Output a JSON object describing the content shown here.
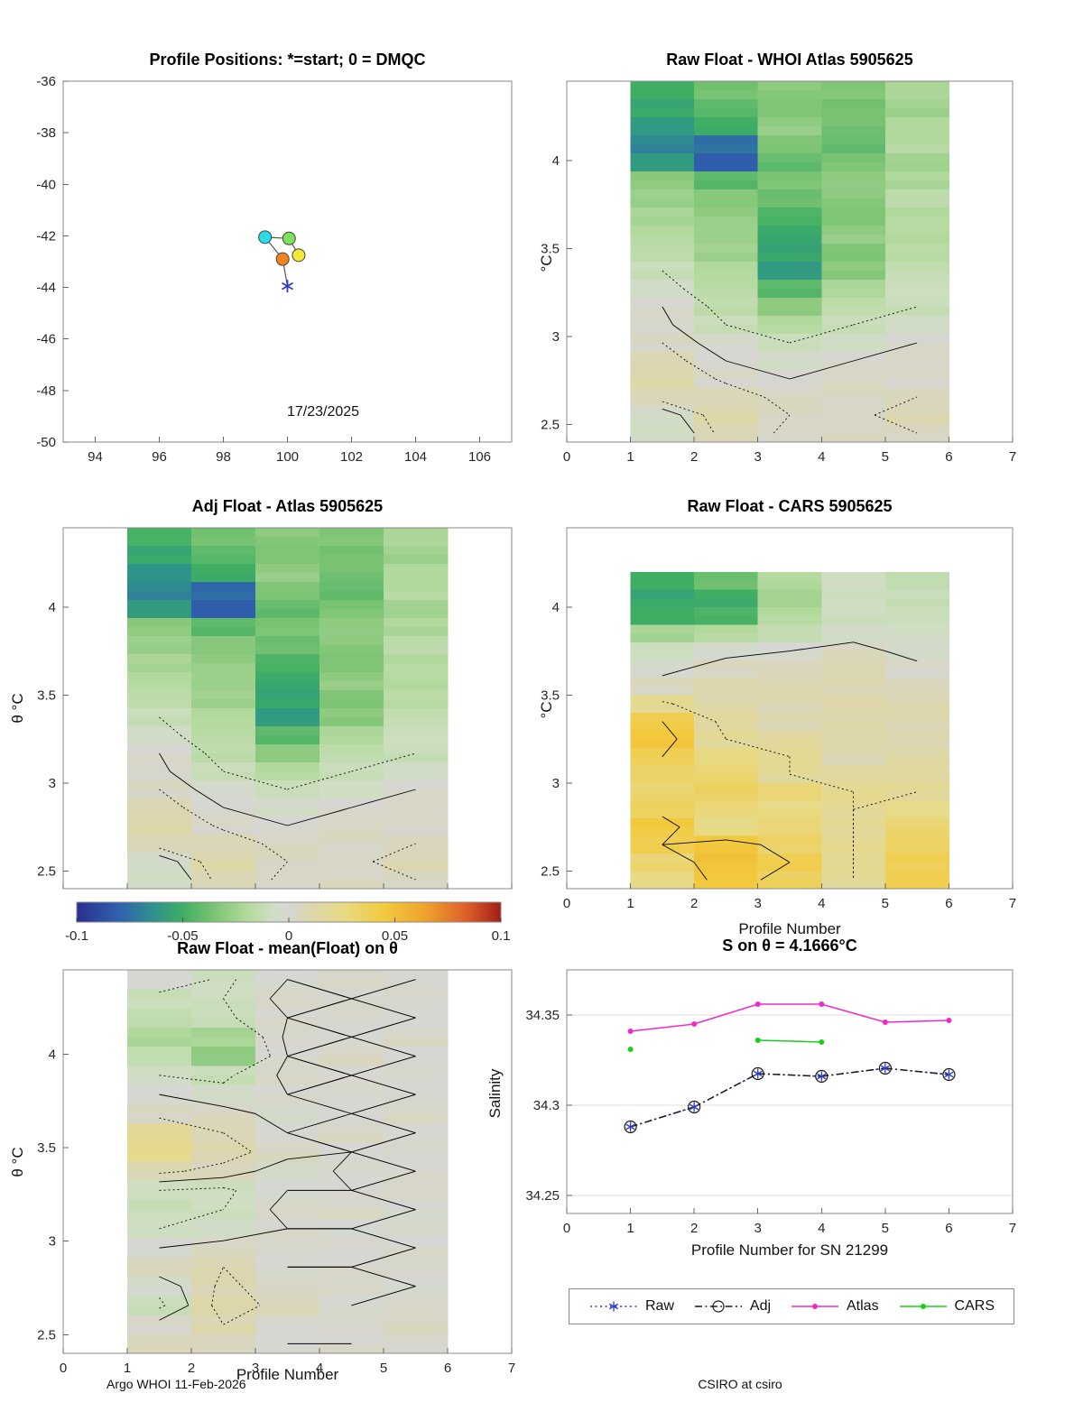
{
  "figure": {
    "background": "#ffffff",
    "footer_left": "Argo WHOI 11-Feb-2026",
    "footer_right": "CSIRO at csiro",
    "colormap": {
      "stops": [
        [
          -0.1,
          "#2a2e8f"
        ],
        [
          -0.08,
          "#2f62ae"
        ],
        [
          -0.062,
          "#2f958a"
        ],
        [
          -0.05,
          "#3fae62"
        ],
        [
          -0.035,
          "#7cc474"
        ],
        [
          -0.02,
          "#b2d99c"
        ],
        [
          -0.008,
          "#cfdec2"
        ],
        [
          0.0,
          "#d6d6d2"
        ],
        [
          0.01,
          "#dcd6ae"
        ],
        [
          0.025,
          "#e7da88"
        ],
        [
          0.045,
          "#f2ca3e"
        ],
        [
          0.065,
          "#efa02c"
        ],
        [
          0.085,
          "#da5b28"
        ],
        [
          0.1,
          "#a01d19"
        ]
      ]
    },
    "colorbar": {
      "range": [
        -0.1,
        0.1
      ],
      "ticks": [
        -0.1,
        -0.05,
        0,
        0.05,
        0.1
      ],
      "tick_labels": [
        "-0.1",
        "-0.05",
        "0",
        "0.05",
        "0.1"
      ]
    }
  },
  "chart_data": [
    {
      "id": "positions",
      "type": "scatter",
      "title": "Profile Positions: *=start; 0 = DMQC",
      "xlim": [
        93,
        107
      ],
      "ylim": [
        -50,
        -36
      ],
      "xticks": [
        94,
        96,
        98,
        100,
        102,
        104,
        106
      ],
      "xtick_labels": [
        "94",
        "96",
        "98",
        "100",
        "102",
        "104",
        "106"
      ],
      "yticks": [
        -50,
        -48,
        -46,
        -44,
        -42,
        -40,
        -38,
        -36
      ],
      "ytick_labels": [
        "-50",
        "-48",
        "-46",
        "-44",
        "-42",
        "-40",
        "-38",
        "-36"
      ],
      "annotation": {
        "text": "17/23/2025",
        "x": 100,
        "y": -49
      },
      "track": [
        {
          "x": 100.0,
          "y": -43.95,
          "marker": "asterisk",
          "color": "#2f3ec4"
        },
        {
          "x": 99.85,
          "y": -42.9,
          "marker": "circle",
          "color": "#f5821f"
        },
        {
          "x": 99.3,
          "y": -42.05,
          "marker": "circle",
          "color": "#29dce8"
        },
        {
          "x": 100.05,
          "y": -42.1,
          "marker": "circle",
          "color": "#7de25a"
        },
        {
          "x": 100.35,
          "y": -42.75,
          "marker": "circle",
          "color": "#f2e83a"
        }
      ]
    },
    {
      "id": "raw_atlas",
      "type": "heatmap",
      "title": "Raw Float - WHOI Atlas  5905625",
      "xlim": [
        0,
        7
      ],
      "ylim": [
        2.4,
        4.45
      ],
      "xticks": [
        0,
        1,
        2,
        3,
        4,
        5,
        6,
        7
      ],
      "xtick_labels": [
        "0",
        "1",
        "2",
        "3",
        "4",
        "5",
        "6",
        "7"
      ],
      "yticks": [
        2.5,
        3,
        3.5,
        4
      ],
      "ytick_labels": [
        "2.5",
        "3",
        "3.5",
        "4"
      ],
      "ylabel": "°C",
      "contours": {
        "solid": [
          0
        ],
        "dotted": [
          -0.01,
          0.005
        ]
      },
      "grid": {
        "x0": 1,
        "x1": 6,
        "y_top": 4.45,
        "y_bottom": 2.4,
        "values": [
          [
            -0.05,
            -0.038,
            -0.03,
            -0.034,
            -0.022
          ],
          [
            -0.055,
            -0.042,
            -0.034,
            -0.038,
            -0.024
          ],
          [
            -0.06,
            -0.05,
            -0.03,
            -0.036,
            -0.02
          ],
          [
            -0.066,
            -0.076,
            -0.034,
            -0.04,
            -0.02
          ],
          [
            -0.06,
            -0.082,
            -0.04,
            -0.036,
            -0.024
          ],
          [
            -0.032,
            -0.042,
            -0.036,
            -0.03,
            -0.02
          ],
          [
            -0.026,
            -0.032,
            -0.04,
            -0.03,
            -0.016
          ],
          [
            -0.022,
            -0.03,
            -0.046,
            -0.034,
            -0.02
          ],
          [
            -0.02,
            -0.026,
            -0.052,
            -0.03,
            -0.018
          ],
          [
            -0.016,
            -0.024,
            -0.056,
            -0.034,
            -0.016
          ],
          [
            -0.01,
            -0.02,
            -0.06,
            -0.03,
            -0.014
          ],
          [
            -0.006,
            -0.018,
            -0.042,
            -0.022,
            -0.01
          ],
          [
            0.0,
            -0.014,
            -0.03,
            -0.016,
            -0.01
          ],
          [
            0.002,
            -0.01,
            -0.02,
            -0.01,
            -0.006
          ],
          [
            0.005,
            -0.004,
            -0.01,
            -0.006,
            0.0
          ],
          [
            0.008,
            0.0,
            -0.004,
            0.0,
            0.003
          ],
          [
            0.01,
            0.004,
            0.0,
            0.003,
            0.004
          ],
          [
            0.008,
            0.008,
            0.003,
            0.005,
            0.005
          ],
          [
            -0.004,
            0.01,
            0.005,
            0.004,
            0.007
          ],
          [
            -0.008,
            0.008,
            0.004,
            0.003,
            0.005
          ]
        ]
      }
    },
    {
      "id": "adj_atlas",
      "type": "heatmap",
      "title": "Adj Float - Atlas  5905625",
      "xlim": [
        0,
        7
      ],
      "ylim": [
        2.4,
        4.45
      ],
      "xticks": [
        0,
        1,
        2,
        3,
        4,
        5,
        6,
        7
      ],
      "xtick_labels": null,
      "yticks": [
        2.5,
        3,
        3.5,
        4
      ],
      "ytick_labels": [
        "2.5",
        "3",
        "3.5",
        "4"
      ],
      "ylabel": "θ °C",
      "contours": {
        "solid": [
          0
        ],
        "dotted": [
          -0.01,
          0.005
        ]
      },
      "grid": {
        "x0": 1,
        "x1": 6,
        "y_top": 4.45,
        "y_bottom": 2.4,
        "values": [
          [
            -0.048,
            -0.038,
            -0.03,
            -0.034,
            -0.022
          ],
          [
            -0.055,
            -0.042,
            -0.034,
            -0.038,
            -0.024
          ],
          [
            -0.062,
            -0.05,
            -0.03,
            -0.036,
            -0.02
          ],
          [
            -0.066,
            -0.078,
            -0.034,
            -0.04,
            -0.02
          ],
          [
            -0.06,
            -0.082,
            -0.04,
            -0.036,
            -0.024
          ],
          [
            -0.032,
            -0.042,
            -0.036,
            -0.03,
            -0.02
          ],
          [
            -0.026,
            -0.032,
            -0.04,
            -0.03,
            -0.016
          ],
          [
            -0.022,
            -0.03,
            -0.046,
            -0.034,
            -0.02
          ],
          [
            -0.02,
            -0.026,
            -0.052,
            -0.03,
            -0.018
          ],
          [
            -0.016,
            -0.024,
            -0.056,
            -0.034,
            -0.016
          ],
          [
            -0.01,
            -0.02,
            -0.06,
            -0.03,
            -0.014
          ],
          [
            -0.006,
            -0.018,
            -0.042,
            -0.022,
            -0.01
          ],
          [
            0.0,
            -0.014,
            -0.03,
            -0.016,
            -0.01
          ],
          [
            0.002,
            -0.01,
            -0.02,
            -0.01,
            -0.006
          ],
          [
            0.005,
            -0.004,
            -0.01,
            -0.006,
            0.0
          ],
          [
            0.008,
            0.0,
            -0.004,
            0.0,
            0.003
          ],
          [
            0.01,
            0.004,
            0.0,
            0.003,
            0.004
          ],
          [
            0.008,
            0.008,
            0.003,
            0.005,
            0.005
          ],
          [
            -0.004,
            0.01,
            0.005,
            0.004,
            0.007
          ],
          [
            -0.008,
            0.008,
            0.004,
            0.003,
            0.005
          ]
        ]
      }
    },
    {
      "id": "raw_cars",
      "type": "heatmap",
      "title": "Raw Float - CARS  5905625",
      "xlim": [
        0,
        7
      ],
      "ylim": [
        2.4,
        4.45
      ],
      "xticks": [
        0,
        1,
        2,
        3,
        4,
        5,
        6,
        7
      ],
      "xtick_labels": [
        "0",
        "1",
        "2",
        "3",
        "4",
        "5",
        "6",
        "7"
      ],
      "yticks": [
        2.5,
        3,
        3.5,
        4
      ],
      "ytick_labels": [
        "2.5",
        "3",
        "3.5",
        "4"
      ],
      "xlabel": "Profile Number",
      "ylabel": "°C",
      "contours": {
        "solid": [
          0,
          0.04
        ],
        "dotted": [
          0.02
        ]
      },
      "grid": {
        "x0": 1,
        "x1": 6,
        "y_top": 4.2,
        "y_bottom": 2.4,
        "values": [
          [
            -0.05,
            -0.04,
            -0.018,
            -0.008,
            -0.014
          ],
          [
            -0.056,
            -0.05,
            -0.024,
            -0.01,
            -0.01
          ],
          [
            -0.05,
            -0.046,
            -0.02,
            -0.008,
            -0.01
          ],
          [
            -0.022,
            -0.02,
            -0.012,
            -0.004,
            -0.008
          ],
          [
            -0.01,
            -0.004,
            0.0,
            0.004,
            -0.004
          ],
          [
            -0.004,
            0.006,
            0.005,
            0.008,
            0.003
          ],
          [
            0.006,
            0.01,
            0.008,
            0.01,
            0.005
          ],
          [
            0.022,
            0.01,
            0.01,
            0.012,
            0.008
          ],
          [
            0.04,
            0.016,
            0.01,
            0.01,
            0.01
          ],
          [
            0.046,
            0.02,
            0.015,
            0.012,
            0.01
          ],
          [
            0.04,
            0.026,
            0.02,
            0.01,
            0.012
          ],
          [
            0.034,
            0.03,
            0.02,
            0.015,
            0.015
          ],
          [
            0.03,
            0.036,
            0.03,
            0.02,
            0.02
          ],
          [
            0.036,
            0.03,
            0.025,
            0.02,
            0.025
          ],
          [
            0.046,
            0.024,
            0.03,
            0.02,
            0.03
          ],
          [
            0.04,
            0.046,
            0.035,
            0.02,
            0.035
          ],
          [
            0.03,
            0.05,
            0.04,
            0.02,
            0.04
          ],
          [
            0.026,
            0.046,
            0.035,
            0.02,
            0.04
          ]
        ]
      }
    },
    {
      "id": "raw_mean",
      "type": "heatmap",
      "title": "Raw Float - mean(Float) on θ",
      "xlim": [
        0,
        7
      ],
      "ylim": [
        2.4,
        4.45
      ],
      "xticks": [
        0,
        1,
        2,
        3,
        4,
        5,
        6,
        7
      ],
      "xtick_labels": [
        "0",
        "1",
        "2",
        "3",
        "4",
        "5",
        "6",
        "7"
      ],
      "yticks": [
        2.5,
        3,
        3.5,
        4
      ],
      "ytick_labels": [
        "2.5",
        "3",
        "3.5",
        "4"
      ],
      "xlabel": "Profile Number",
      "ylabel": "θ °C",
      "contours": {
        "solid": [
          0
        ],
        "dotted": [
          -0.008,
          0.008
        ]
      },
      "grid": {
        "x0": 1,
        "x1": 6,
        "y_top": 4.45,
        "y_bottom": 2.4,
        "values": [
          [
            0.0,
            -0.01,
            0.0,
            0.002,
            0.0
          ],
          [
            -0.012,
            -0.008,
            0.003,
            0.0,
            0.002
          ],
          [
            -0.014,
            -0.01,
            0.0,
            0.002,
            0.0
          ],
          [
            -0.02,
            -0.024,
            0.002,
            0.0,
            0.002
          ],
          [
            -0.014,
            -0.03,
            0.0,
            0.003,
            0.0
          ],
          [
            -0.008,
            -0.01,
            0.002,
            0.0,
            0.002
          ],
          [
            0.0,
            -0.005,
            0.0,
            0.002,
            0.0
          ],
          [
            0.005,
            0.003,
            -0.003,
            0.0,
            0.002
          ],
          [
            0.018,
            0.008,
            0.0,
            0.002,
            0.0
          ],
          [
            0.022,
            0.012,
            0.003,
            0.0,
            0.002
          ],
          [
            0.01,
            0.005,
            -0.005,
            0.002,
            0.0
          ],
          [
            -0.008,
            -0.01,
            0.0,
            0.0,
            0.002
          ],
          [
            -0.012,
            -0.008,
            0.003,
            0.002,
            0.0
          ],
          [
            -0.008,
            -0.005,
            0.0,
            0.0,
            0.002
          ],
          [
            0.0,
            0.003,
            0.002,
            0.002,
            0.0
          ],
          [
            0.005,
            0.008,
            0.0,
            0.0,
            0.002
          ],
          [
            -0.005,
            0.01,
            0.003,
            0.002,
            0.0
          ],
          [
            -0.01,
            0.012,
            0.005,
            0.0,
            0.002
          ],
          [
            0.003,
            0.008,
            0.002,
            0.002,
            0.003
          ],
          [
            0.005,
            0.005,
            0.0,
            0.0,
            0.002
          ]
        ]
      }
    },
    {
      "id": "s_on_theta",
      "type": "line",
      "title": "S on θ = 4.1666°C",
      "xlabel": "Profile Number for SN 21299",
      "ylabel": "Salinity",
      "xlim": [
        0,
        7
      ],
      "ylim": [
        34.24,
        34.375
      ],
      "xticks": [
        0,
        1,
        2,
        3,
        4,
        5,
        6,
        7
      ],
      "xtick_labels": [
        "0",
        "1",
        "2",
        "3",
        "4",
        "5",
        "6",
        "7"
      ],
      "yticks": [
        34.25,
        34.3,
        34.35
      ],
      "ytick_labels": [
        "34.25",
        "34.3",
        "34.35"
      ],
      "grid_lines": true,
      "series": [
        {
          "name": "Raw",
          "color": "#2f3ec4",
          "line": "dotted",
          "marker": "asterisk",
          "x": [
            1,
            2,
            3,
            4,
            5,
            6
          ],
          "y": [
            34.288,
            34.299,
            34.3175,
            34.316,
            34.3205,
            34.317
          ]
        },
        {
          "name": "Adj",
          "color": "#1a1a1a",
          "line": "dashdot",
          "marker": "open-circle",
          "x": [
            1,
            2,
            3,
            4,
            5,
            6
          ],
          "y": [
            34.288,
            34.299,
            34.3175,
            34.316,
            34.3205,
            34.317
          ]
        },
        {
          "name": "Atlas",
          "color": "#ee2bc8",
          "line": "solid",
          "marker": "dot",
          "x": [
            1,
            2,
            3,
            4,
            5,
            6
          ],
          "y": [
            34.341,
            34.345,
            34.356,
            34.356,
            34.346,
            34.347
          ]
        },
        {
          "name": "CARS",
          "color": "#19cf19",
          "line": "solid",
          "marker": "dot",
          "x": [
            1,
            3,
            4
          ],
          "y": [
            34.331,
            34.336,
            34.335
          ]
        }
      ]
    }
  ]
}
